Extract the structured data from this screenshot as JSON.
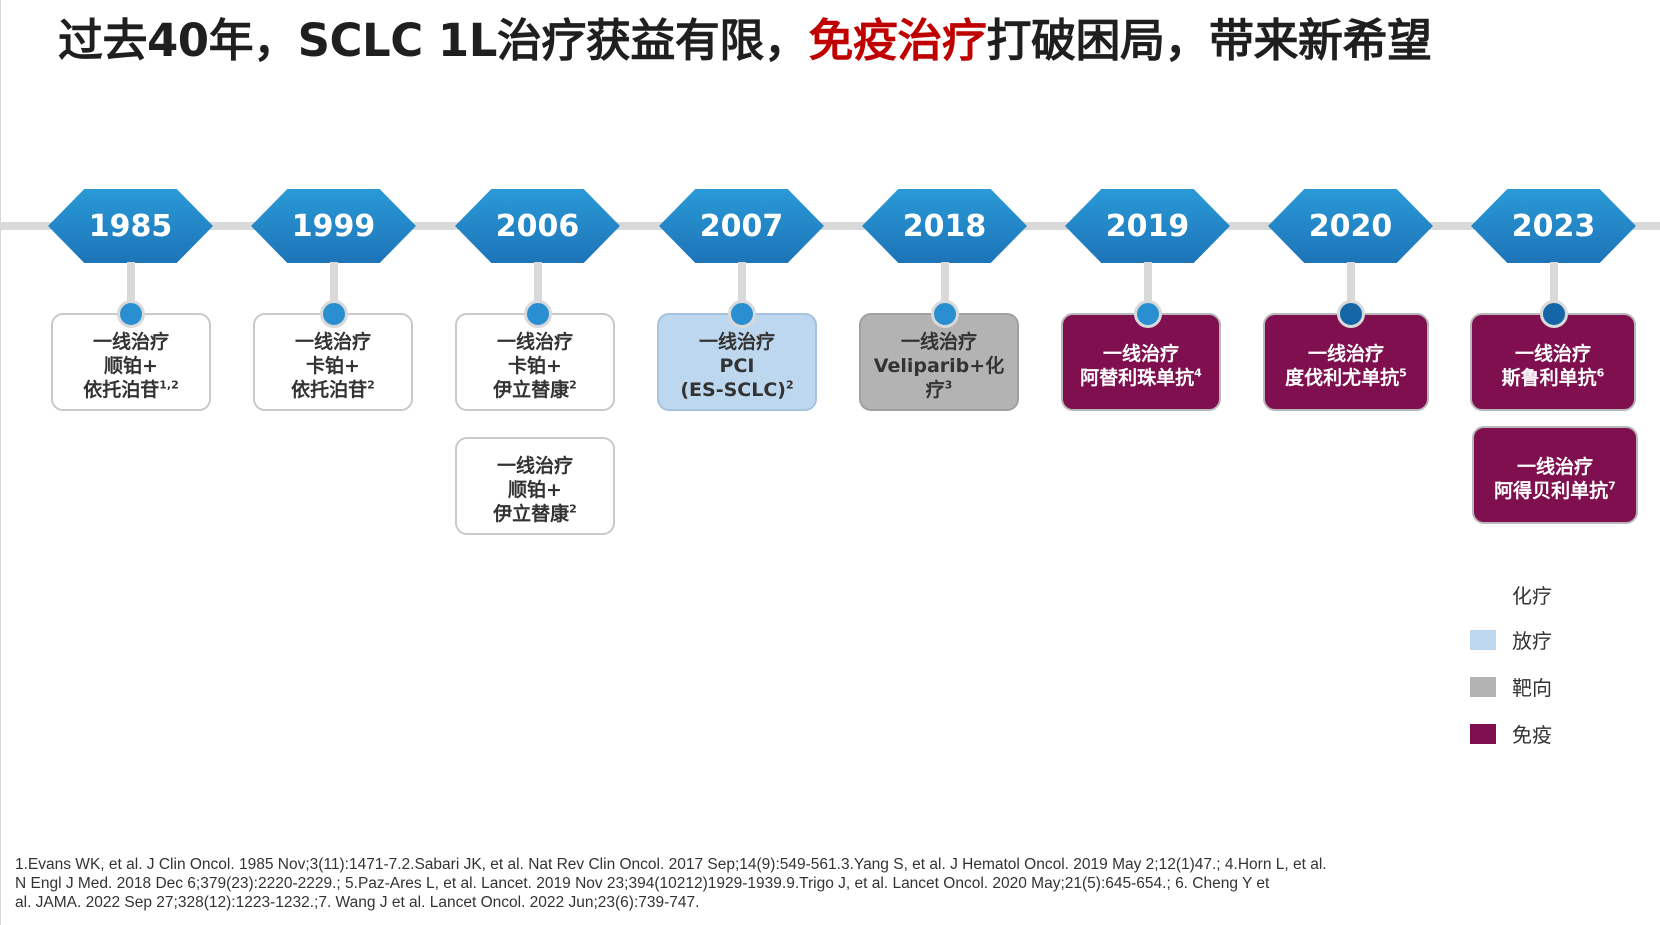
{
  "title": {
    "part1": "过去40年，SCLC 1L治疗获益有限，",
    "highlight": "免疫治疗",
    "part2": "打破困局，带来新希望"
  },
  "colors": {
    "highlight": "#c00000",
    "year_badge": "#1d74b8",
    "chemo": "#ffffff",
    "radiotherapy": "#bdd7ee",
    "targeted": "#b3b3b3",
    "immunotherapy": "#7f0f4e"
  },
  "timeline": [
    {
      "year": "1985",
      "cards": [
        {
          "category": "chemo",
          "line1": "一线治疗",
          "line2": "顺铂+",
          "line3": "依托泊苷",
          "ref": "1,2"
        }
      ]
    },
    {
      "year": "1999",
      "cards": [
        {
          "category": "chemo",
          "line1": "一线治疗",
          "line2": "卡铂+",
          "line3": "依托泊苷",
          "ref": "2"
        }
      ]
    },
    {
      "year": "2006",
      "cards": [
        {
          "category": "chemo",
          "line1": "一线治疗",
          "line2": "卡铂+",
          "line3": "伊立替康",
          "ref": "2"
        },
        {
          "category": "chemo",
          "line1": "一线治疗",
          "line2": "顺铂+",
          "line3": "伊立替康",
          "ref": "2"
        }
      ]
    },
    {
      "year": "2007",
      "cards": [
        {
          "category": "radiotherapy",
          "line1": "一线治疗",
          "line2": "PCI",
          "line3": "(ES-SCLC)",
          "ref": "2"
        }
      ]
    },
    {
      "year": "2018",
      "cards": [
        {
          "category": "targeted",
          "line1": "一线治疗",
          "line2": "Veliparib+化",
          "line3": "疗",
          "ref": "3"
        }
      ]
    },
    {
      "year": "2019",
      "cards": [
        {
          "category": "immunotherapy",
          "line1": "一线治疗",
          "line2": "阿替利珠单抗",
          "ref": "4"
        }
      ]
    },
    {
      "year": "2020",
      "cards": [
        {
          "category": "immunotherapy",
          "line1": "一线治疗",
          "line2": "度伐利尤单抗",
          "ref": "5"
        }
      ]
    },
    {
      "year": "2023",
      "cards": [
        {
          "category": "immunotherapy",
          "line1": "一线治疗",
          "line2": "斯鲁利单抗",
          "ref": "6"
        },
        {
          "category": "immunotherapy",
          "line1": "一线治疗",
          "line2": "阿得贝利单抗",
          "ref": "7"
        }
      ]
    }
  ],
  "legend": [
    {
      "label": "化疗",
      "color": "#ffffff"
    },
    {
      "label": "放疗",
      "color": "#bdd7ee"
    },
    {
      "label": "靶向",
      "color": "#b3b3b3"
    },
    {
      "label": "免疫",
      "color": "#7f0f4e"
    }
  ],
  "references": {
    "line1": "1.Evans WK, et al. J Clin Oncol. 1985 Nov;3(11):1471-7.2.Sabari JK, et al. Nat Rev Clin Oncol. 2017 Sep;14(9):549-561.3.Yang S, et al. J Hematol Oncol. 2019 May 2;12(1)47.;  4.Horn L, et al.",
    "line2": "N Engl J Med. 2018 Dec 6;379(23):2220-2229.; 5.Paz-Ares L, et al. Lancet. 2019 Nov 23;394(10212)1929-1939.9.Trigo J, et al. Lancet Oncol. 2020 May;21(5):645-654.; 6. Cheng Y et",
    "line3": "al. JAMA. 2022 Sep 27;328(12):1223-1232.;7. Wang J et al. Lancet Oncol. 2022 Jun;23(6):739-747."
  }
}
